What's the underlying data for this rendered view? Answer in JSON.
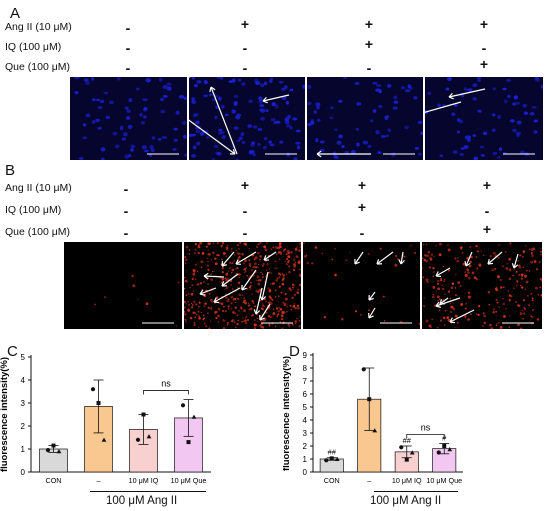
{
  "panel_a": {
    "letter": "A",
    "rows": [
      {
        "label": "Ang II (10 μM)",
        "signs": [
          "-",
          "+",
          "+",
          "+"
        ]
      },
      {
        "label": "IQ (100 μM)",
        "signs": [
          "-",
          "-",
          "+",
          "-"
        ]
      },
      {
        "label": "Que (100 μM)",
        "signs": [
          "-",
          "-",
          "-",
          "+"
        ]
      }
    ],
    "stain_color": "#1a1fd0",
    "bg_color": "#05052e"
  },
  "panel_b": {
    "letter": "B",
    "rows": [
      {
        "label": "Ang II (10 μM)",
        "signs": [
          "-",
          "+",
          "+",
          "+"
        ]
      },
      {
        "label": "IQ (100 μM)",
        "signs": [
          "-",
          "-",
          "+",
          "-"
        ]
      },
      {
        "label": "Que (100 μM)",
        "signs": [
          "-",
          "-",
          "-",
          "+"
        ]
      }
    ],
    "stain_color": "#d2321e",
    "bg_color": "#000000"
  },
  "panel_c": {
    "letter": "C",
    "group_label": "100 μM Ang II"
  },
  "panel_d": {
    "letter": "D",
    "group_label": "100 μM Ang II"
  },
  "chart_data": [
    {
      "id": "C",
      "type": "bar",
      "ylabel": "fluorescence intensity(%)",
      "ylim": [
        0,
        5
      ],
      "yticks": [
        "0",
        "1",
        "2",
        "3",
        "4",
        "5"
      ],
      "categories": [
        "CON",
        "–",
        "10 μM IQ",
        "10 μM Que"
      ],
      "values": [
        1.0,
        2.85,
        1.85,
        2.35
      ],
      "errors": [
        0.15,
        1.15,
        0.65,
        0.8
      ],
      "colors": [
        "#d9d9d9",
        "#f9c790",
        "#f9d0d0",
        "#f2c8f2"
      ],
      "points": [
        [
          0.95,
          1.15,
          0.9
        ],
        [
          3.6,
          3.0,
          1.4
        ],
        [
          1.4,
          2.5,
          1.55
        ],
        [
          2.9,
          1.3,
          2.4
        ]
      ],
      "bar_annotations": [
        "",
        "",
        "",
        ""
      ],
      "significance": {
        "from": 2,
        "to": 3,
        "label": "ns"
      }
    },
    {
      "id": "D",
      "type": "bar",
      "ylabel": "fluorescence intensity(%)",
      "ylim": [
        0,
        9
      ],
      "yticks": [
        "0",
        "1",
        "2",
        "3",
        "4",
        "5",
        "6",
        "7",
        "8",
        "9"
      ],
      "categories": [
        "CON",
        "–",
        "10 μM IQ",
        "10 μM Que"
      ],
      "values": [
        1.0,
        5.6,
        1.55,
        1.8
      ],
      "errors": [
        0.1,
        2.4,
        0.45,
        0.4
      ],
      "colors": [
        "#d9d9d9",
        "#f9c790",
        "#f9d0d0",
        "#f2c8f2"
      ],
      "points": [
        [
          0.9,
          1.05,
          1.0
        ],
        [
          7.9,
          5.6,
          3.2
        ],
        [
          1.9,
          0.95,
          1.5
        ],
        [
          1.5,
          2.0,
          1.75
        ]
      ],
      "bar_annotations": [
        "##",
        "",
        "##",
        "#"
      ],
      "significance": {
        "from": 2,
        "to": 3,
        "label": "ns"
      }
    }
  ]
}
